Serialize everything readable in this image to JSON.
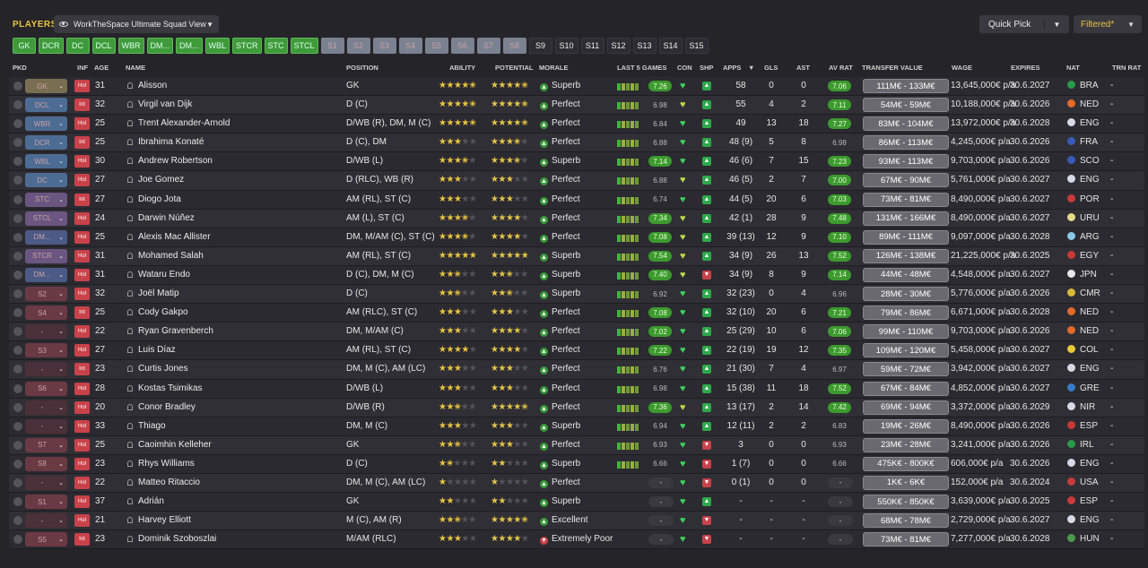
{
  "header": {
    "title": "PLAYERS",
    "view": "WorkTheSpace Ultimate Squad View",
    "quick_pick": "Quick Pick",
    "filter": "Filtered*"
  },
  "chips": [
    {
      "label": "GK",
      "style": "green"
    },
    {
      "label": "DCR",
      "style": "green"
    },
    {
      "label": "DC",
      "style": "green"
    },
    {
      "label": "DCL",
      "style": "green"
    },
    {
      "label": "WBR",
      "style": "green"
    },
    {
      "label": "DM...",
      "style": "green"
    },
    {
      "label": "DM...",
      "style": "green"
    },
    {
      "label": "WBL",
      "style": "green"
    },
    {
      "label": "STCR",
      "style": "green"
    },
    {
      "label": "STC",
      "style": "green"
    },
    {
      "label": "STCL",
      "style": "green"
    },
    {
      "label": "S1",
      "style": "grey"
    },
    {
      "label": "S2",
      "style": "grey"
    },
    {
      "label": "S3",
      "style": "grey"
    },
    {
      "label": "S4",
      "style": "grey"
    },
    {
      "label": "S5",
      "style": "grey"
    },
    {
      "label": "S6",
      "style": "grey"
    },
    {
      "label": "S7",
      "style": "grey"
    },
    {
      "label": "S8",
      "style": "grey"
    },
    {
      "label": "S9",
      "style": "dark"
    },
    {
      "label": "S10",
      "style": "dark"
    },
    {
      "label": "S11",
      "style": "dark"
    },
    {
      "label": "S12",
      "style": "dark"
    },
    {
      "label": "S13",
      "style": "dark"
    },
    {
      "label": "S14",
      "style": "dark"
    },
    {
      "label": "S15",
      "style": "dark"
    }
  ],
  "columns": {
    "pkd": "PKD",
    "inf": "INF",
    "age": "AGE",
    "name": "NAME",
    "position": "POSITION",
    "ability": "ABILITY",
    "potential": "POTENTIAL",
    "morale": "MORALE",
    "last5": "LAST 5 GAMES",
    "con": "CON",
    "shp": "SHP",
    "apps": "APPS",
    "apps_sort": "▼",
    "gls": "GLS",
    "ast": "AST",
    "avrat": "AV RAT",
    "tv": "TRANSFER VALUE",
    "wage": "WAGE",
    "expires": "EXPIRES",
    "nat": "NAT",
    "trnrat": "TRN RAT"
  },
  "players": [
    {
      "pkd": "GK",
      "pkd_style": "gk",
      "inf": "Hol",
      "age": "31",
      "name": "Alisson",
      "position": "GK",
      "ability": 4.5,
      "potential": 4.5,
      "morale": "Superb",
      "morale_icon": "▲",
      "form": "7.26",
      "form_style": "g",
      "con": "good",
      "shp": "up",
      "apps": "58",
      "gls": "0",
      "ast": "0",
      "avrat": "7.06",
      "avrat_style": "g",
      "tv": "111M€ - 133M€",
      "wage": "13,645,000€ p/a",
      "expires": "30.6.2027",
      "nat": "BRA",
      "flag": "#2a9a4a",
      "trn": "-"
    },
    {
      "pkd": "DCL",
      "pkd_style": "def",
      "inf": "Int",
      "age": "32",
      "name": "Virgil van Dijk",
      "position": "D (C)",
      "ability": 4.5,
      "potential": 4.5,
      "morale": "Perfect",
      "morale_icon": "▲",
      "form": "6.98",
      "form_style": "n",
      "con": "ok",
      "shp": "up",
      "apps": "55",
      "gls": "4",
      "ast": "2",
      "avrat": "7.11",
      "avrat_style": "g",
      "tv": "54M€ - 59M€",
      "wage": "10,188,000€ p/a",
      "expires": "30.6.2026",
      "nat": "NED",
      "flag": "#e06a2a",
      "trn": "-"
    },
    {
      "pkd": "WBR",
      "pkd_style": "def",
      "inf": "Hol",
      "age": "25",
      "name": "Trent Alexander-Arnold",
      "position": "D/WB (R), DM, M (C)",
      "ability": 4.5,
      "potential": 4.5,
      "morale": "Perfect",
      "morale_icon": "▲",
      "form": "6.84",
      "form_style": "n",
      "con": "good",
      "shp": "up",
      "apps": "49",
      "gls": "13",
      "ast": "18",
      "avrat": "7.27",
      "avrat_style": "g",
      "tv": "83M€ - 104M€",
      "wage": "13,972,000€ p/a",
      "expires": "30.6.2028",
      "nat": "ENG",
      "flag": "#d8d8e8",
      "trn": "-"
    },
    {
      "pkd": "DCR",
      "pkd_style": "def",
      "inf": "Int",
      "age": "25",
      "name": "Ibrahima Konaté",
      "position": "D (C), DM",
      "ability": 3,
      "potential": 3.5,
      "morale": "Perfect",
      "morale_icon": "▲",
      "form": "6.88",
      "form_style": "n",
      "con": "good",
      "shp": "up",
      "apps": "48 (9)",
      "gls": "5",
      "ast": "8",
      "avrat": "6.98",
      "avrat_style": "n",
      "tv": "86M€ - 113M€",
      "wage": "4,245,000€ p/a",
      "expires": "30.6.2026",
      "nat": "FRA",
      "flag": "#3a5ab8",
      "trn": "-"
    },
    {
      "pkd": "WBL",
      "pkd_style": "def",
      "inf": "Hol",
      "age": "30",
      "name": "Andrew Robertson",
      "position": "D/WB (L)",
      "ability": 3.5,
      "potential": 3.5,
      "morale": "Superb",
      "morale_icon": "▲",
      "form": "7.14",
      "form_style": "g",
      "con": "good",
      "shp": "up",
      "apps": "46 (6)",
      "gls": "7",
      "ast": "15",
      "avrat": "7.23",
      "avrat_style": "g",
      "tv": "93M€ - 113M€",
      "wage": "9,703,000€ p/a",
      "expires": "30.6.2026",
      "nat": "SCO",
      "flag": "#3a5ab8",
      "trn": "-"
    },
    {
      "pkd": "DC",
      "pkd_style": "def",
      "inf": "Hol",
      "age": "27",
      "name": "Joe Gomez",
      "position": "D (RLC), WB (R)",
      "ability": 3,
      "potential": 3,
      "morale": "Perfect",
      "morale_icon": "▲",
      "form": "6.88",
      "form_style": "n",
      "con": "ok",
      "shp": "up",
      "apps": "46 (5)",
      "gls": "2",
      "ast": "7",
      "avrat": "7.00",
      "avrat_style": "g",
      "tv": "67M€ - 90M€",
      "wage": "5,761,000€ p/a",
      "expires": "30.6.2027",
      "nat": "ENG",
      "flag": "#d8d8e8",
      "trn": "-"
    },
    {
      "pkd": "STC",
      "pkd_style": "att",
      "inf": "Int",
      "age": "27",
      "name": "Diogo Jota",
      "position": "AM (RL), ST (C)",
      "ability": 3,
      "potential": 3,
      "morale": "Perfect",
      "morale_icon": "▲",
      "form": "6.74",
      "form_style": "n",
      "con": "good",
      "shp": "up",
      "apps": "44 (5)",
      "gls": "20",
      "ast": "6",
      "avrat": "7.03",
      "avrat_style": "g",
      "tv": "73M€ - 81M€",
      "wage": "8,490,000€ p/a",
      "expires": "30.6.2027",
      "nat": "POR",
      "flag": "#c83a3a",
      "trn": "-"
    },
    {
      "pkd": "STCL",
      "pkd_style": "att",
      "inf": "Hol",
      "age": "24",
      "name": "Darwin Núñez",
      "position": "AM (L), ST (C)",
      "ability": 3.5,
      "potential": 4,
      "morale": "Perfect",
      "morale_icon": "▲",
      "form": "7.34",
      "form_style": "g",
      "con": "ok",
      "shp": "up2",
      "apps": "42 (1)",
      "gls": "28",
      "ast": "9",
      "avrat": "7.48",
      "avrat_style": "g",
      "tv": "131M€ - 166M€",
      "wage": "8,490,000€ p/a",
      "expires": "30.6.2027",
      "nat": "URU",
      "flag": "#e8d88a",
      "trn": "-"
    },
    {
      "pkd": "DM...",
      "pkd_style": "mid",
      "inf": "Hol",
      "age": "25",
      "name": "Alexis Mac Allister",
      "position": "DM, M/AM (C), ST (C)",
      "ability": 3.5,
      "potential": 4,
      "morale": "Perfect",
      "morale_icon": "▲",
      "form": "7.08",
      "form_style": "g",
      "con": "ok",
      "shp": "up2",
      "apps": "39 (13)",
      "gls": "12",
      "ast": "9",
      "avrat": "7.10",
      "avrat_style": "g",
      "tv": "89M€ - 111M€",
      "wage": "9,097,000€ p/a",
      "expires": "30.6.2028",
      "nat": "ARG",
      "flag": "#8ac8e8",
      "trn": "-"
    },
    {
      "pkd": "STCR",
      "pkd_style": "att",
      "inf": "Hol",
      "age": "31",
      "name": "Mohamed Salah",
      "position": "AM (RL), ST (C)",
      "ability": 5,
      "potential": 5,
      "morale": "Superb",
      "morale_icon": "▲",
      "form": "7.54",
      "form_style": "g",
      "con": "ok",
      "shp": "up2",
      "apps": "34 (9)",
      "gls": "26",
      "ast": "13",
      "avrat": "7.52",
      "avrat_style": "g",
      "tv": "126M€ - 138M€",
      "wage": "21,225,000€ p/a",
      "expires": "30.6.2025",
      "nat": "EGY",
      "flag": "#c83a3a",
      "trn": "-"
    },
    {
      "pkd": "DM...",
      "pkd_style": "mid",
      "inf": "Hol",
      "age": "31",
      "name": "Wataru Endo",
      "position": "D (C), DM, M (C)",
      "ability": 2.5,
      "potential": 2.5,
      "morale": "Superb",
      "morale_icon": "▲",
      "form": "7.40",
      "form_style": "g",
      "con": "ok",
      "shp": "down",
      "apps": "34 (9)",
      "gls": "8",
      "ast": "9",
      "avrat": "7.14",
      "avrat_style": "g",
      "tv": "44M€ - 48M€",
      "wage": "4,548,000€ p/a",
      "expires": "30.6.2027",
      "nat": "JPN",
      "flag": "#e8e8e8",
      "trn": "-"
    },
    {
      "pkd": "S2",
      "pkd_style": "sub",
      "inf": "Hol",
      "age": "32",
      "name": "Joël Matip",
      "position": "D (C)",
      "ability": 2.5,
      "potential": 2.5,
      "morale": "Superb",
      "morale_icon": "▲",
      "form": "6.92",
      "form_style": "n",
      "con": "good",
      "shp": "up",
      "apps": "32 (23)",
      "gls": "0",
      "ast": "4",
      "avrat": "6.96",
      "avrat_style": "n",
      "tv": "28M€ - 30M€",
      "wage": "5,776,000€ p/a",
      "expires": "30.6.2026",
      "nat": "CMR",
      "flag": "#d8b83a",
      "trn": "-"
    },
    {
      "pkd": "S4",
      "pkd_style": "sub",
      "inf": "Int",
      "age": "25",
      "name": "Cody Gakpo",
      "position": "AM (RLC), ST (C)",
      "ability": 3,
      "potential": 3,
      "morale": "Perfect",
      "morale_icon": "▲",
      "form": "7.08",
      "form_style": "g",
      "con": "good",
      "shp": "up2",
      "apps": "32 (10)",
      "gls": "20",
      "ast": "6",
      "avrat": "7.21",
      "avrat_style": "g",
      "tv": "79M€ - 86M€",
      "wage": "6,671,000€ p/a",
      "expires": "30.6.2028",
      "nat": "NED",
      "flag": "#e06a2a",
      "trn": "-"
    },
    {
      "pkd": "-",
      "pkd_style": "none",
      "inf": "Hol",
      "age": "22",
      "name": "Ryan Gravenberch",
      "position": "DM, M/AM (C)",
      "ability": 3,
      "potential": 4,
      "morale": "Perfect",
      "morale_icon": "▲",
      "form": "7.02",
      "form_style": "g",
      "con": "good",
      "shp": "up2",
      "apps": "25 (29)",
      "gls": "10",
      "ast": "6",
      "avrat": "7.06",
      "avrat_style": "g",
      "tv": "99M€ - 110M€",
      "wage": "9,703,000€ p/a",
      "expires": "30.6.2026",
      "nat": "NED",
      "flag": "#e06a2a",
      "trn": "-"
    },
    {
      "pkd": "S3",
      "pkd_style": "sub",
      "inf": "Hol",
      "age": "27",
      "name": "Luis Díaz",
      "position": "AM (RL), ST (C)",
      "ability": 4,
      "potential": 4,
      "morale": "Perfect",
      "morale_icon": "▲",
      "form": "7.22",
      "form_style": "g",
      "con": "good",
      "shp": "up",
      "apps": "22 (19)",
      "gls": "19",
      "ast": "12",
      "avrat": "7.35",
      "avrat_style": "g",
      "tv": "109M€ - 120M€",
      "wage": "5,458,000€ p/a",
      "expires": "30.6.2027",
      "nat": "COL",
      "flag": "#e8c83a",
      "trn": "-"
    },
    {
      "pkd": "-",
      "pkd_style": "none",
      "inf": "Int",
      "age": "23",
      "name": "Curtis Jones",
      "position": "DM, M (C), AM (LC)",
      "ability": 3,
      "potential": 3,
      "morale": "Perfect",
      "morale_icon": "▲",
      "form": "6.76",
      "form_style": "n",
      "con": "good",
      "shp": "up",
      "apps": "21 (30)",
      "gls": "7",
      "ast": "4",
      "avrat": "6.97",
      "avrat_style": "n",
      "tv": "59M€ - 72M€",
      "wage": "3,942,000€ p/a",
      "expires": "30.6.2027",
      "nat": "ENG",
      "flag": "#d8d8e8",
      "trn": "-"
    },
    {
      "pkd": "S6",
      "pkd_style": "sub",
      "inf": "Hol",
      "age": "28",
      "name": "Kostas Tsimikas",
      "position": "D/WB (L)",
      "ability": 3,
      "potential": 3,
      "morale": "Perfect",
      "morale_icon": "▲",
      "form": "6.98",
      "form_style": "n",
      "con": "good",
      "shp": "up",
      "apps": "15 (38)",
      "gls": "11",
      "ast": "18",
      "avrat": "7.52",
      "avrat_style": "g",
      "tv": "67M€ - 84M€",
      "wage": "4,852,000€ p/a",
      "expires": "30.6.2027",
      "nat": "GRE",
      "flag": "#3a7ac8",
      "trn": "-"
    },
    {
      "pkd": "-",
      "pkd_style": "none",
      "inf": "Hol",
      "age": "20",
      "name": "Conor Bradley",
      "position": "D/WB (R)",
      "ability": 2.5,
      "potential": 4.5,
      "morale": "Perfect",
      "morale_icon": "▲",
      "form": "7.36",
      "form_style": "g",
      "con": "ok",
      "shp": "up2",
      "apps": "13 (17)",
      "gls": "2",
      "ast": "14",
      "avrat": "7.42",
      "avrat_style": "g",
      "tv": "69M€ - 94M€",
      "wage": "3,372,000€ p/a",
      "expires": "30.6.2029",
      "nat": "NIR",
      "flag": "#d8d8e8",
      "trn": "-"
    },
    {
      "pkd": "-",
      "pkd_style": "none",
      "inf": "Hol",
      "age": "33",
      "name": "Thiago",
      "position": "DM, M (C)",
      "ability": 3,
      "potential": 3,
      "morale": "Superb",
      "morale_icon": "▲",
      "form": "6.94",
      "form_style": "n",
      "con": "good",
      "shp": "up2",
      "apps": "12 (11)",
      "gls": "2",
      "ast": "2",
      "avrat": "6.83",
      "avrat_style": "n",
      "tv": "19M€ - 26M€",
      "wage": "8,490,000€ p/a",
      "expires": "30.6.2026",
      "nat": "ESP",
      "flag": "#c83a3a",
      "trn": "-"
    },
    {
      "pkd": "S7",
      "pkd_style": "sub",
      "inf": "Hol",
      "age": "25",
      "name": "Caoimhin Kelleher",
      "position": "GK",
      "ability": 2.5,
      "potential": 3,
      "morale": "Perfect",
      "morale_icon": "▲",
      "form": "6.93",
      "form_style": "n",
      "con": "good",
      "shp": "down",
      "apps": "3",
      "gls": "0",
      "ast": "0",
      "avrat": "6.93",
      "avrat_style": "n",
      "tv": "23M€ - 28M€",
      "wage": "3,241,000€ p/a",
      "expires": "30.6.2026",
      "nat": "IRL",
      "flag": "#2a9a4a",
      "trn": "-"
    },
    {
      "pkd": "S8",
      "pkd_style": "sub",
      "inf": "Hol",
      "age": "23",
      "name": "Rhys Williams",
      "position": "D (C)",
      "ability": 1.5,
      "potential": 2,
      "morale": "Superb",
      "morale_icon": "▲",
      "form": "6.66",
      "form_style": "n",
      "con": "good",
      "shp": "down",
      "apps": "1 (7)",
      "gls": "0",
      "ast": "0",
      "avrat": "6.66",
      "avrat_style": "n",
      "tv": "475K€ - 800K€",
      "wage": "606,000€ p/a",
      "expires": "30.6.2026",
      "nat": "ENG",
      "flag": "#d8d8e8",
      "trn": "-"
    },
    {
      "pkd": "-",
      "pkd_style": "none",
      "inf": "Hol",
      "age": "22",
      "name": "Matteo Ritaccio",
      "position": "DM, M (C), AM (LC)",
      "ability": 1,
      "potential": 1,
      "morale": "Perfect",
      "morale_icon": "▲",
      "form": "-",
      "form_style": "p",
      "con": "good",
      "shp": "down",
      "apps": "0 (1)",
      "gls": "0",
      "ast": "0",
      "avrat": "-",
      "avrat_style": "p",
      "tv": "1K€ - 6K€",
      "wage": "152,000€ p/a",
      "expires": "30.6.2024",
      "nat": "USA",
      "flag": "#c83a3a",
      "trn": "-"
    },
    {
      "pkd": "S1",
      "pkd_style": "sub",
      "inf": "Hol",
      "age": "37",
      "name": "Adrián",
      "position": "GK",
      "ability": 2,
      "potential": 2,
      "morale": "Superb",
      "morale_icon": "▲",
      "form": "-",
      "form_style": "p",
      "con": "good",
      "shp": "up",
      "apps": "-",
      "gls": "-",
      "ast": "-",
      "avrat": "-",
      "avrat_style": "p",
      "tv": "550K€ - 850K€",
      "wage": "3,639,000€ p/a",
      "expires": "30.6.2025",
      "nat": "ESP",
      "flag": "#c83a3a",
      "trn": "-"
    },
    {
      "pkd": "-",
      "pkd_style": "none",
      "inf": "Hol",
      "age": "21",
      "name": "Harvey Elliott",
      "position": "M (C), AM (R)",
      "ability": 2.5,
      "potential": 4.5,
      "morale": "Excellent",
      "morale_icon": "▲",
      "form": "-",
      "form_style": "p",
      "con": "good",
      "shp": "down",
      "apps": "-",
      "gls": "-",
      "ast": "-",
      "avrat": "-",
      "avrat_style": "p",
      "tv": "68M€ - 78M€",
      "wage": "2,729,000€ p/a",
      "expires": "30.6.2027",
      "nat": "ENG",
      "flag": "#d8d8e8",
      "trn": "-"
    },
    {
      "pkd": "S5",
      "pkd_style": "sub",
      "inf": "Int",
      "age": "23",
      "name": "Dominik Szoboszlai",
      "position": "M/AM (RLC)",
      "ability": 3,
      "potential": 4,
      "morale": "Extremely Poor",
      "morale_icon": "▼",
      "form": "-",
      "form_style": "p",
      "con": "good",
      "shp": "down",
      "apps": "-",
      "gls": "-",
      "ast": "-",
      "avrat": "-",
      "avrat_style": "p",
      "tv": "73M€ - 81M€",
      "wage": "7,277,000€ p/a",
      "expires": "30.6.2028",
      "nat": "HUN",
      "flag": "#4a9a4a",
      "trn": "-"
    }
  ]
}
